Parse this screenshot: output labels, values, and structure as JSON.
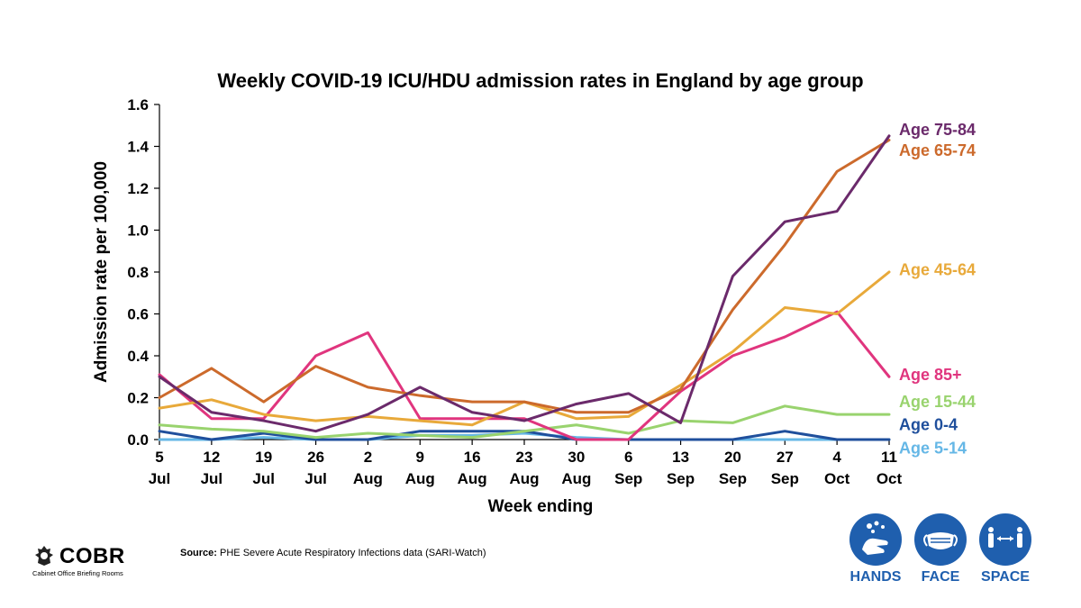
{
  "chart_data": {
    "type": "line",
    "title": "Weekly COVID-19 ICU/HDU admission rates in England by age group",
    "xlabel": "Week ending",
    "ylabel": "Admission rate per 100,000",
    "ylim": [
      0,
      1.6
    ],
    "yticks": [
      "0.0",
      "0.2",
      "0.4",
      "0.6",
      "0.8",
      "1.0",
      "1.2",
      "1.4",
      "1.6"
    ],
    "categories": [
      [
        "5",
        "Jul"
      ],
      [
        "12",
        "Jul"
      ],
      [
        "19",
        "Jul"
      ],
      [
        "26",
        "Jul"
      ],
      [
        "2",
        "Aug"
      ],
      [
        "9",
        "Aug"
      ],
      [
        "16",
        "Aug"
      ],
      [
        "23",
        "Aug"
      ],
      [
        "30",
        "Aug"
      ],
      [
        "6",
        "Sep"
      ],
      [
        "13",
        "Sep"
      ],
      [
        "20",
        "Sep"
      ],
      [
        "27",
        "Sep"
      ],
      [
        "4",
        "Oct"
      ],
      [
        "11",
        "Oct"
      ]
    ],
    "grid": false,
    "legend": "labels at line ends (right)",
    "series": [
      {
        "name": "Age 75-84",
        "color": "#6b2a6b",
        "label_value": 1.48,
        "values": [
          0.3,
          0.13,
          0.09,
          0.04,
          0.12,
          0.25,
          0.13,
          0.09,
          0.17,
          0.22,
          0.08,
          0.78,
          1.04,
          1.09,
          1.45
        ]
      },
      {
        "name": "Age 65-74",
        "color": "#cc6a2c",
        "label_value": 1.38,
        "values": [
          0.2,
          0.34,
          0.18,
          0.35,
          0.25,
          0.21,
          0.18,
          0.18,
          0.13,
          0.13,
          0.24,
          0.62,
          0.93,
          1.28,
          1.43
        ]
      },
      {
        "name": "Age 45-64",
        "color": "#e8a93a",
        "label_value": 0.81,
        "values": [
          0.15,
          0.19,
          0.12,
          0.09,
          0.11,
          0.09,
          0.07,
          0.18,
          0.1,
          0.11,
          0.26,
          0.42,
          0.63,
          0.6,
          0.8
        ]
      },
      {
        "name": "Age 85+",
        "color": "#e0357e",
        "label_value": 0.31,
        "values": [
          0.31,
          0.1,
          0.1,
          0.4,
          0.51,
          0.1,
          0.1,
          0.1,
          0.0,
          0.0,
          0.23,
          0.4,
          0.49,
          0.61,
          0.3
        ]
      },
      {
        "name": "Age 15-44",
        "color": "#99d36e",
        "label_value": 0.18,
        "values": [
          0.07,
          0.05,
          0.04,
          0.01,
          0.03,
          0.02,
          0.01,
          0.04,
          0.07,
          0.03,
          0.09,
          0.08,
          0.16,
          0.12,
          0.12
        ]
      },
      {
        "name": "Age 0-4",
        "color": "#1f4f9c",
        "label_value": 0.07,
        "values": [
          0.04,
          0.0,
          0.03,
          0.0,
          0.0,
          0.04,
          0.04,
          0.04,
          0.0,
          0.0,
          0.0,
          0.0,
          0.04,
          0.0,
          0.0
        ]
      },
      {
        "name": "Age 5-14",
        "color": "#65b7e6",
        "label_value": -0.04,
        "values": [
          0.0,
          0.0,
          0.01,
          0.0,
          0.0,
          0.02,
          0.02,
          0.03,
          0.01,
          0.0,
          0.0,
          0.0,
          0.0,
          0.0,
          0.0
        ]
      }
    ]
  },
  "source": {
    "label": "Source:",
    "text": "PHE Severe Acute Respiratory Infections data (SARI-Watch)"
  },
  "logo": {
    "name": "COBR",
    "subtitle": "Cabinet Office Briefing Rooms"
  },
  "badges": [
    {
      "label": "HANDS",
      "icon": "hands-washing-icon"
    },
    {
      "label": "FACE",
      "icon": "face-mask-icon"
    },
    {
      "label": "SPACE",
      "icon": "social-distance-icon"
    }
  ],
  "badge_color": "#1f5fae"
}
